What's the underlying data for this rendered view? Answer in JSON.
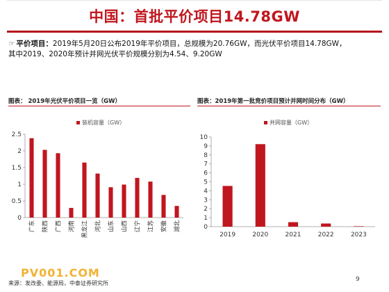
{
  "page": {
    "title": "中国：首批平价项目14.78GW",
    "bullet_lead": "平价项目：",
    "bullet_line1": "2019年5月20日公布2019年平价项目，总规模为20.76GW，而光伏平价项目14.78GW，",
    "bullet_line2": "其中2019、2020年预计并网光伏平价规模分别为4.54、9.20GW",
    "watermark": "PV001.COM",
    "source": "来源：发改委、能源局，中泰证券研究所",
    "page_number": "9"
  },
  "figures": [
    {
      "caption": "图表： 2019年光伏平价项目一览（GW）"
    },
    {
      "caption": "图表：2019年第一批竞价项目预计并网时间分布（GW）"
    }
  ],
  "colors": {
    "accent": "#c0161e",
    "bar": "#c0161e",
    "title": "#c0161e"
  },
  "chart_data": [
    {
      "type": "bar",
      "title": "",
      "legend": "装机容量（GW）",
      "categories": [
        "广东",
        "陕西",
        "广西",
        "河南",
        "黑龙江",
        "河北",
        "山东",
        "山西",
        "辽宁",
        "江苏",
        "安徽",
        "湖北"
      ],
      "values": [
        2.38,
        2.03,
        1.93,
        0.29,
        1.65,
        1.32,
        0.91,
        0.99,
        1.19,
        1.08,
        0.68,
        0.35
      ],
      "ylim": [
        0,
        2.5
      ],
      "yticks": [
        "0",
        "0.5",
        "1",
        "1.5",
        "2",
        "2.5"
      ],
      "ytick_values": [
        0,
        0.5,
        1,
        1.5,
        2,
        2.5
      ],
      "grid": false
    },
    {
      "type": "bar",
      "title": "",
      "legend": "并网容量（GW）",
      "categories": [
        "2019",
        "2020",
        "2021",
        "2022",
        "2023"
      ],
      "values": [
        4.54,
        9.2,
        0.5,
        0.35,
        0.05
      ],
      "ylim": [
        0,
        10
      ],
      "yticks": [
        "0",
        "1",
        "2",
        "3",
        "4",
        "5",
        "6",
        "7",
        "8",
        "9",
        "10"
      ],
      "ytick_values": [
        0,
        1,
        2,
        3,
        4,
        5,
        6,
        7,
        8,
        9,
        10
      ],
      "grid": false
    }
  ]
}
